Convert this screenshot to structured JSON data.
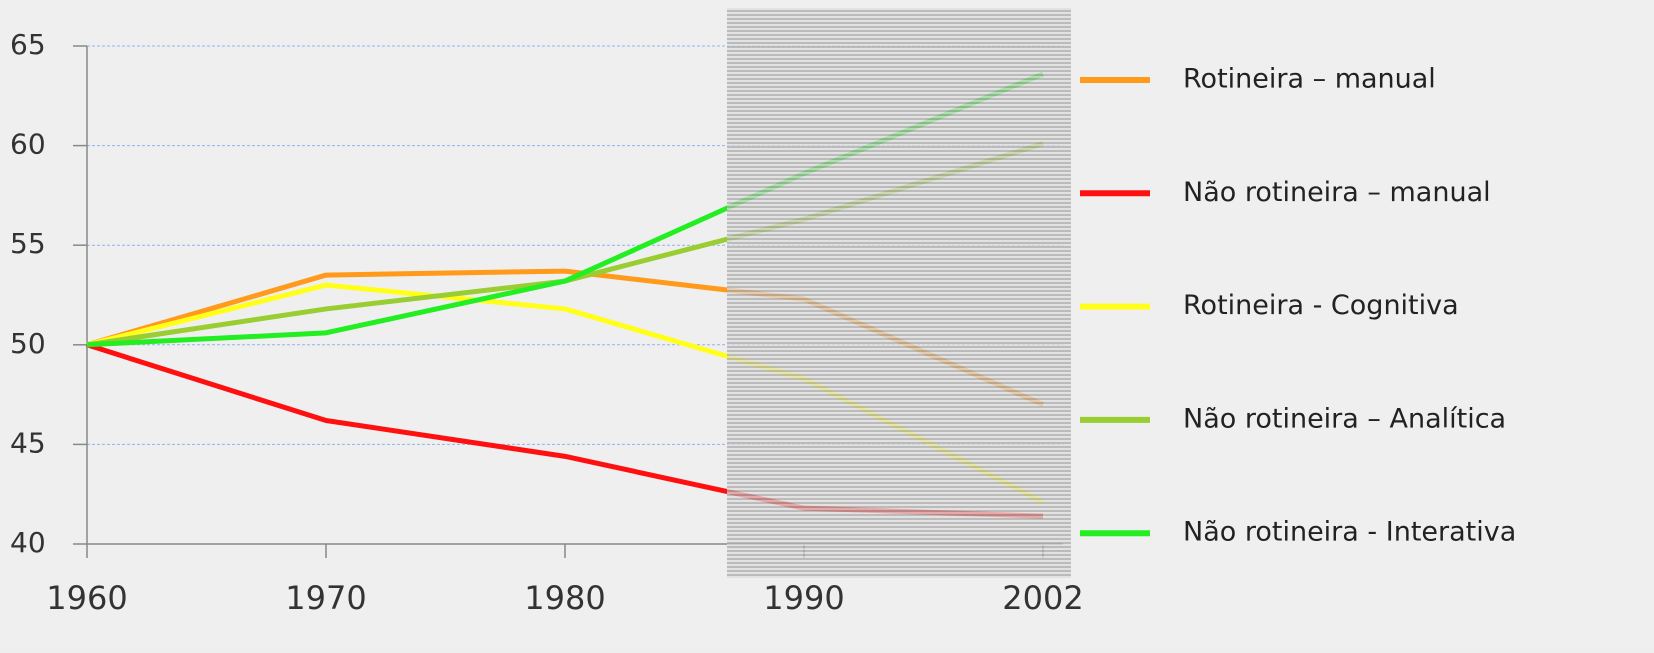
{
  "chart_data": {
    "type": "line",
    "categories": [
      "1960",
      "1970",
      "1980",
      "1990",
      "2002"
    ],
    "series": [
      {
        "name": "Rotineira – manual",
        "color": "#ff9a1a",
        "values": [
          50,
          53.5,
          53.7,
          52.3,
          47
        ]
      },
      {
        "name": "Não rotineira – manual",
        "color": "#ff1010",
        "values": [
          50,
          46.2,
          44.4,
          41.8,
          41.4
        ]
      },
      {
        "name": "Rotineira - Cognitiva",
        "color": "#ffff1a",
        "values": [
          50,
          53,
          51.8,
          48.3,
          42.1
        ]
      },
      {
        "name": "Não rotineira – Analítica",
        "color": "#9acd32",
        "values": [
          50,
          51.8,
          53.2,
          56.3,
          60.1
        ]
      },
      {
        "name": "Não rotineira - Interativa",
        "color": "#22ee22",
        "values": [
          50,
          50.6,
          53.2,
          58.6,
          63.6
        ]
      }
    ],
    "ylim": [
      40,
      65
    ],
    "yticks": [
      40,
      45,
      50,
      55,
      60,
      65
    ],
    "grid": true,
    "legend": "right"
  }
}
